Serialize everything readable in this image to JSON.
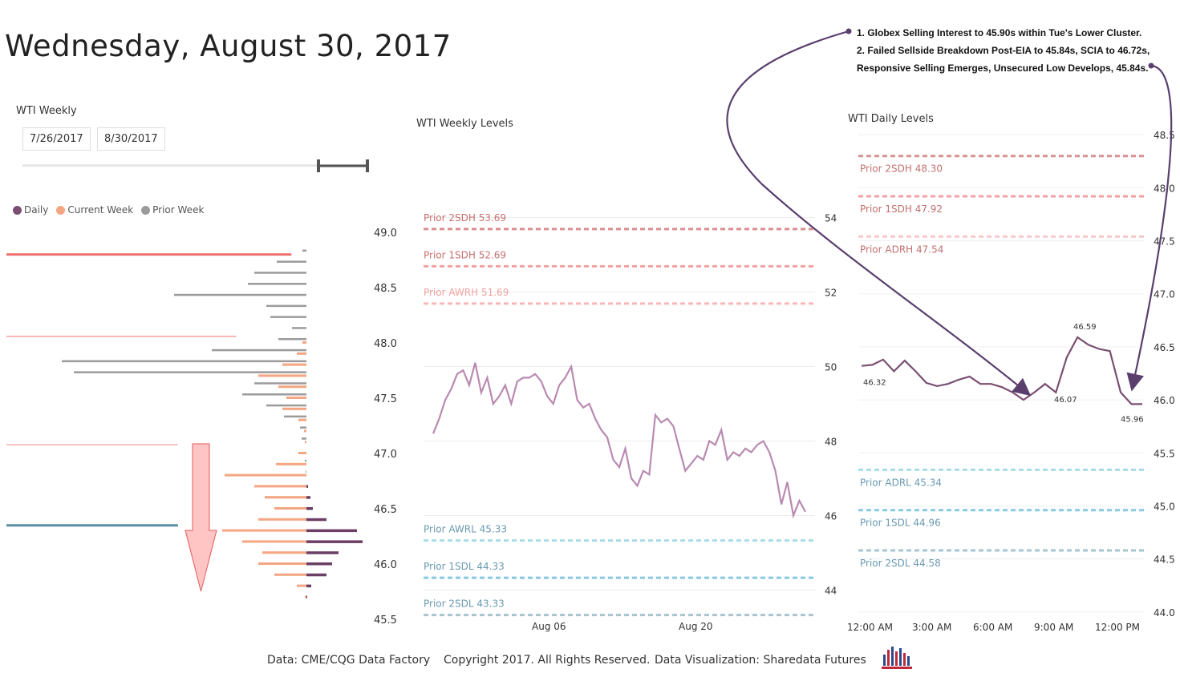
{
  "title": "Wednesday, August 30, 2017",
  "slicer": {
    "label": "WTI Weekly",
    "start": "7/26/2017",
    "end": "8/30/2017"
  },
  "legend": [
    {
      "name": "Daily",
      "color": "#7a4f72"
    },
    {
      "name": "Current Week",
      "color": "#f4a582"
    },
    {
      "name": "Prior Week",
      "color": "#9b9b9b"
    }
  ],
  "notes": [
    "1. Globex Selling Interest to 45.90s within Tue's Lower Cluster.",
    "2. Failed Sellside Breakdown Post-EIA to 45.84s, SCIA to 46.72s,",
    "Responsive Selling Emerges, Unsecured Low Develops, 45.84s."
  ],
  "footer": {
    "source": "Data: CME/CQG Data Factory",
    "copyright": "Copyright 2017. All Rights Reserved.",
    "viz": "Data Visualization: Sharedata Futures"
  },
  "chart_data": [
    {
      "type": "bar",
      "orientation": "horizontal",
      "y_ticks": [
        "49.0",
        "48.5",
        "48.0",
        "47.5",
        "47.0",
        "46.5",
        "46.0",
        "45.5"
      ],
      "ylim": [
        45.5,
        49.0
      ],
      "reference_lines": [
        {
          "price": 48.8,
          "color": "#f07070",
          "length": 0.93
        },
        {
          "price": 48.06,
          "color": "#f4a0a0",
          "length": 0.75
        },
        {
          "price": 47.08,
          "color": "#f4b0b0",
          "length": 0.56
        },
        {
          "price": 46.35,
          "color": "#5a8fa0",
          "length": 0.56
        }
      ],
      "profile": [
        {
          "price": 48.8,
          "prior": 5,
          "current": 0,
          "daily": 0
        },
        {
          "price": 48.7,
          "prior": 37,
          "current": 0,
          "daily": 0
        },
        {
          "price": 48.6,
          "prior": 65,
          "current": 0,
          "daily": 0
        },
        {
          "price": 48.5,
          "prior": 73,
          "current": 0,
          "daily": 0
        },
        {
          "price": 48.4,
          "prior": 165,
          "current": 0,
          "daily": 0
        },
        {
          "price": 48.3,
          "prior": 50,
          "current": 0,
          "daily": 0
        },
        {
          "price": 48.2,
          "prior": 45,
          "current": 0,
          "daily": 0
        },
        {
          "price": 48.1,
          "prior": 18,
          "current": 0,
          "daily": 0
        },
        {
          "price": 48.0,
          "prior": 35,
          "current": 5,
          "daily": 0
        },
        {
          "price": 47.9,
          "prior": 118,
          "current": 12,
          "daily": 0
        },
        {
          "price": 47.8,
          "prior": 305,
          "current": 30,
          "daily": 0
        },
        {
          "price": 47.7,
          "prior": 290,
          "current": 60,
          "daily": 0
        },
        {
          "price": 47.6,
          "prior": 65,
          "current": 35,
          "daily": 0
        },
        {
          "price": 47.5,
          "prior": 80,
          "current": 25,
          "daily": 0
        },
        {
          "price": 47.4,
          "prior": 50,
          "current": 30,
          "daily": 0
        },
        {
          "price": 47.3,
          "prior": 28,
          "current": 10,
          "daily": 0
        },
        {
          "price": 47.2,
          "prior": 8,
          "current": 3,
          "daily": 0
        },
        {
          "price": 47.1,
          "prior": 6,
          "current": 2,
          "daily": 0
        },
        {
          "price": 47.0,
          "prior": 0,
          "current": 10,
          "daily": 0
        },
        {
          "price": 46.9,
          "prior": 2,
          "current": 38,
          "daily": 0
        },
        {
          "price": 46.8,
          "prior": 1,
          "current": 102,
          "daily": 0
        },
        {
          "price": 46.7,
          "prior": 0,
          "current": 65,
          "daily": 2
        },
        {
          "price": 46.6,
          "prior": 0,
          "current": 52,
          "daily": 5
        },
        {
          "price": 46.5,
          "prior": 0,
          "current": 40,
          "daily": 8
        },
        {
          "price": 46.4,
          "prior": 0,
          "current": 60,
          "daily": 25
        },
        {
          "price": 46.3,
          "prior": 0,
          "current": 105,
          "daily": 63
        },
        {
          "price": 46.2,
          "prior": 0,
          "current": 80,
          "daily": 70
        },
        {
          "price": 46.1,
          "prior": 0,
          "current": 55,
          "daily": 40
        },
        {
          "price": 46.0,
          "prior": 0,
          "current": 60,
          "daily": 32
        },
        {
          "price": 45.9,
          "prior": 0,
          "current": 40,
          "daily": 25
        },
        {
          "price": 45.8,
          "prior": 0,
          "current": 12,
          "daily": 6
        },
        {
          "price": 45.7,
          "prior": 0,
          "current": 2,
          "daily": 1
        }
      ]
    },
    {
      "type": "line",
      "title": "WTI Weekly Levels",
      "x_ticks": [
        "Aug 06",
        "Aug 20"
      ],
      "y_ticks": [
        "54",
        "52",
        "50",
        "48",
        "46",
        "44"
      ],
      "ylim": [
        43.0,
        55.0
      ],
      "levels": [
        {
          "label": "Prior 2SDH 53.69",
          "value": 53.69,
          "color": "#d89090"
        },
        {
          "label": "Prior 1SDH 52.69",
          "value": 52.69,
          "color": "#f2a0a0"
        },
        {
          "label": "Prior AWRH 51.69",
          "value": 51.69,
          "color": "#f8b8b8"
        },
        {
          "label": "Prior AWRL 45.33",
          "value": 45.33,
          "color": "#a8dcea"
        },
        {
          "label": "Prior 1SDL 44.33",
          "value": 44.33,
          "color": "#8cc8e0"
        },
        {
          "label": "Prior 2SDL 43.33",
          "value": 43.33,
          "color": "#a8c4d0"
        }
      ],
      "series": [
        {
          "color": "#b98ab1",
          "values": [
            48.2,
            48.6,
            49.1,
            49.4,
            49.8,
            49.9,
            49.5,
            50.1,
            49.3,
            49.7,
            49.0,
            49.2,
            49.5,
            49.0,
            49.6,
            49.7,
            49.7,
            49.8,
            49.6,
            49.2,
            49.0,
            49.5,
            49.7,
            50.0,
            49.1,
            48.9,
            49.0,
            48.6,
            48.3,
            48.1,
            47.5,
            47.3,
            47.8,
            47.0,
            46.8,
            47.2,
            47.1,
            48.7,
            48.5,
            48.6,
            48.4,
            47.8,
            47.2,
            47.4,
            47.6,
            47.5,
            48.0,
            47.9,
            48.3,
            47.5,
            47.7,
            47.6,
            47.8,
            47.7,
            47.9,
            48.0,
            47.7,
            47.2,
            46.3,
            46.9,
            46.0,
            46.4,
            46.1
          ]
        }
      ]
    },
    {
      "type": "line",
      "title": "WTI Daily Levels",
      "x_ticks": [
        "12:00 AM",
        "3:00 AM",
        "6:00 AM",
        "9:00 AM",
        "12:00 PM"
      ],
      "y_ticks": [
        "48.5",
        "48.0",
        "47.5",
        "47.0",
        "46.5",
        "46.0",
        "45.5",
        "45.0",
        "44.5",
        "44.0"
      ],
      "ylim": [
        43.9,
        48.6
      ],
      "levels": [
        {
          "label": "Prior 2SDH 48.30",
          "value": 48.3,
          "color": "#d89090"
        },
        {
          "label": "Prior 1SDH 47.92",
          "value": 47.92,
          "color": "#f2a0a0"
        },
        {
          "label": "Prior ADRH 47.54",
          "value": 47.54,
          "color": "#f8c8c8"
        },
        {
          "label": "Prior ADRL 45.34",
          "value": 45.34,
          "color": "#a8dcea"
        },
        {
          "label": "Prior 1SDL 44.96",
          "value": 44.96,
          "color": "#8cc8e0"
        },
        {
          "label": "Prior 2SDL 44.58",
          "value": 44.58,
          "color": "#a8c4d0"
        }
      ],
      "data_labels": [
        "46.32",
        "46.59",
        "46.07",
        "45.96"
      ],
      "series": [
        {
          "color": "#7a4f72",
          "x": [
            0,
            0.5,
            1,
            1.5,
            2,
            2.5,
            3,
            3.5,
            4,
            4.5,
            5,
            5.5,
            6,
            6.5,
            7,
            7.5,
            8,
            8.5,
            9,
            9.5,
            10,
            10.5,
            11,
            11.5,
            12,
            12.5,
            13
          ],
          "values": [
            46.32,
            46.33,
            46.38,
            46.27,
            46.37,
            46.27,
            46.16,
            46.13,
            46.15,
            46.19,
            46.22,
            46.15,
            46.15,
            46.12,
            46.07,
            46.0,
            46.07,
            46.15,
            46.07,
            46.4,
            46.59,
            46.52,
            46.48,
            46.46,
            46.07,
            45.96,
            45.96
          ]
        }
      ]
    }
  ]
}
